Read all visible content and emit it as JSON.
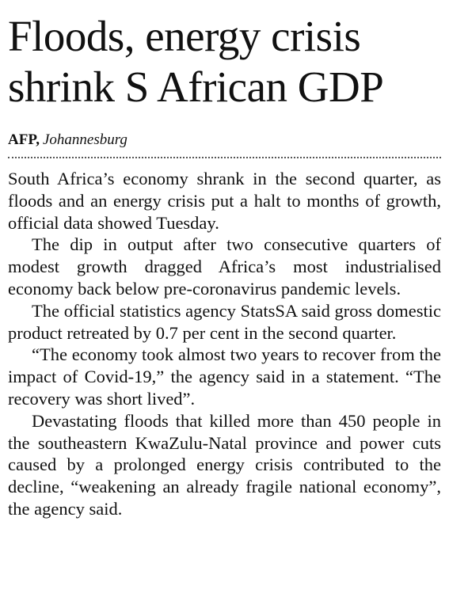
{
  "article": {
    "headline": [
      "Floods, energy crisis",
      "shrink S African GDP"
    ],
    "byline": {
      "agency": "AFP,",
      "location": "Johannesburg"
    },
    "paragraphs": [
      "South Africa’s economy shrank in the second quarter, as floods and an energy crisis put a halt to months of growth, official data showed Tuesday.",
      "The dip in output after two consecutive quarters of modest growth dragged Africa’s most industrialised economy back below pre-coronavirus pandemic levels.",
      "The official statistics agency StatsSA said gross domestic product retreated by 0.7 per cent in the second quarter.",
      "“The economy took almost two years to recover from the impact of Covid-19,” the agency said in a statement.  “The recovery was short lived”.",
      "Devastating floods that killed more than 450 people in the southeastern KwaZulu-Natal province and power cuts caused by a prolonged energy crisis contributed to the decline, “weakening an already fragile national economy”, the agency said."
    ]
  }
}
